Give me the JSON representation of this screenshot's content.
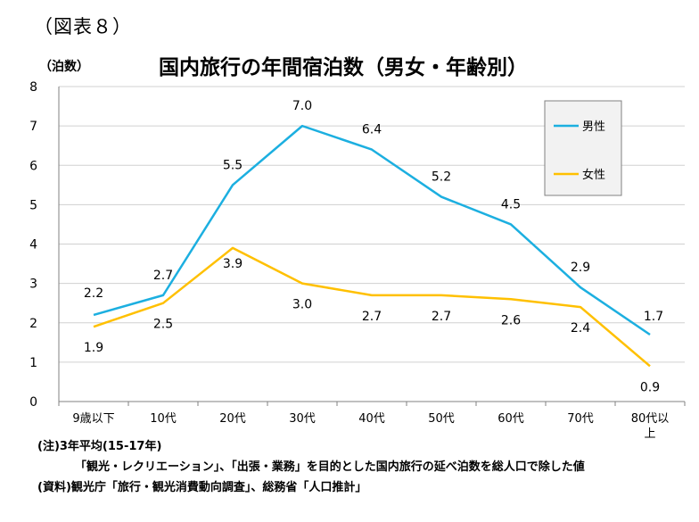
{
  "figure_label": "（図表８）",
  "chart_data": {
    "type": "line",
    "title": "国内旅行の年間宿泊数（男女・年齢別）",
    "ylabel": "（泊数）",
    "xlabel": "",
    "ylim": [
      0,
      8
    ],
    "yticks": [
      0,
      1,
      2,
      3,
      4,
      5,
      6,
      7,
      8
    ],
    "grid": true,
    "legend": "right-top",
    "categories": [
      "9歳以下",
      "10代",
      "20代",
      "30代",
      "40代",
      "50代",
      "60代",
      "70代",
      "80代以上"
    ],
    "series": [
      {
        "name": "男性",
        "color": "#1CAFE0",
        "values": [
          2.2,
          2.7,
          5.5,
          7.0,
          6.4,
          5.2,
          4.5,
          2.9,
          1.7
        ],
        "labels": [
          "2.2",
          "2.7",
          "5.5",
          "7.0",
          "6.4",
          "5.2",
          "4.5",
          "2.9",
          "1.7"
        ]
      },
      {
        "name": "女性",
        "color": "#FFC000",
        "values": [
          1.9,
          2.5,
          3.9,
          3.0,
          2.7,
          2.7,
          2.6,
          2.4,
          0.9
        ],
        "labels": [
          "1.9",
          "2.5",
          "3.9",
          "3.0",
          "2.7",
          "2.7",
          "2.6",
          "2.4",
          "0.9"
        ]
      }
    ]
  },
  "notes": {
    "note1": "(注)3年平均(15-17年)",
    "note2": "「観光・レクリエーション」、「出張・業務」を目的とした国内旅行の延べ泊数を総人口で除した値",
    "note3": "(資料)観光庁「旅行・観光消費動向調査」、総務省「人口推計」"
  }
}
